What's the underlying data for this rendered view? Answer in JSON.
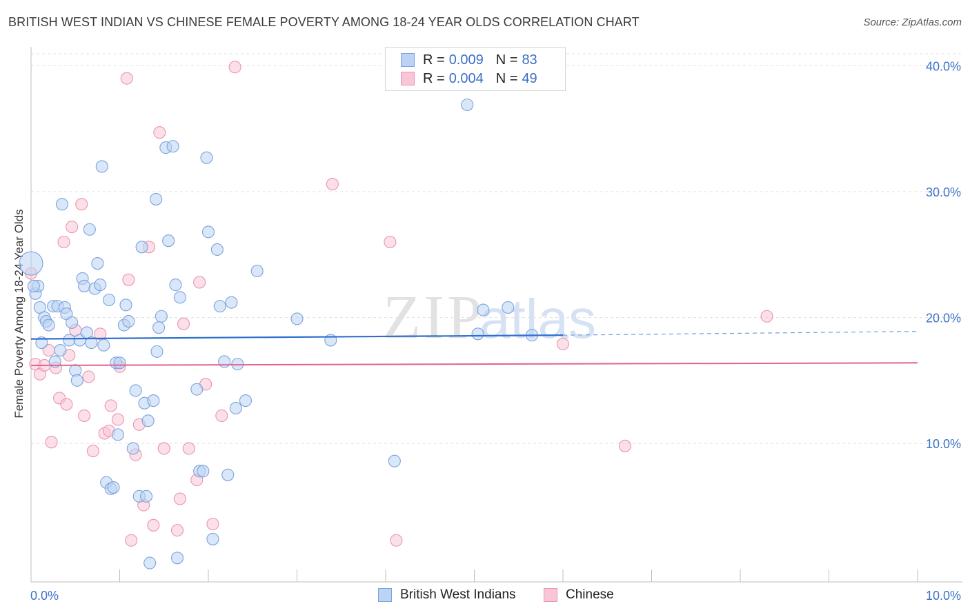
{
  "header": {
    "title": "BRITISH WEST INDIAN VS CHINESE FEMALE POVERTY AMONG 18-24 YEAR OLDS CORRELATION CHART",
    "source": "Source: ZipAtlas.com"
  },
  "watermark": {
    "zip": "ZIP",
    "atlas": "atlas"
  },
  "legend": {
    "rows": [
      {
        "r_label": "R =",
        "r_value": "0.009",
        "n_label": "N =",
        "n_value": "83",
        "color": "#bcd3f3"
      },
      {
        "r_label": "R =",
        "r_value": "0.004",
        "n_label": "N =",
        "n_value": "49",
        "color": "#f8c6d6"
      }
    ]
  },
  "chart_data": {
    "type": "scatter",
    "title": "BRITISH WEST INDIAN VS CHINESE FEMALE POVERTY AMONG 18-24 YEAR OLDS CORRELATION CHART",
    "xlabel": "",
    "ylabel": "Female Poverty Among 18-24 Year Olds",
    "xlim": [
      0,
      10
    ],
    "ylim": [
      -1.0,
      41.5
    ],
    "x_tick_labels": [
      {
        "value": 0,
        "label": "0.0%"
      },
      {
        "value": 10,
        "label": "10.0%"
      }
    ],
    "y_tick_labels": [
      {
        "value": 10,
        "label": "10.0%"
      },
      {
        "value": 20,
        "label": "20.0%"
      },
      {
        "value": 30,
        "label": "30.0%"
      },
      {
        "value": 40,
        "label": "40.0%"
      }
    ],
    "grid": true,
    "legend_position": "top-center",
    "series": [
      {
        "name": "British West Indians",
        "color": "#7aa3de",
        "fill": "#bcd3f3",
        "trend": {
          "x0": 0,
          "y0": 18.3,
          "x1": 6.0,
          "y1": 18.6,
          "dash_to": 10,
          "y_dash_end": 18.9
        },
        "points": [
          [
            0.0,
            24.3
          ],
          [
            0.05,
            21.9
          ],
          [
            0.08,
            22.5
          ],
          [
            0.1,
            20.8
          ],
          [
            0.12,
            18.0
          ],
          [
            0.15,
            20.0
          ],
          [
            0.17,
            19.7
          ],
          [
            0.2,
            19.4
          ],
          [
            0.25,
            20.9
          ],
          [
            0.27,
            16.5
          ],
          [
            0.3,
            20.9
          ],
          [
            0.33,
            17.4
          ],
          [
            0.35,
            29.0
          ],
          [
            0.38,
            20.8
          ],
          [
            0.4,
            20.3
          ],
          [
            0.43,
            18.2
          ],
          [
            0.46,
            19.6
          ],
          [
            0.5,
            15.8
          ],
          [
            0.52,
            15.0
          ],
          [
            0.55,
            18.2
          ],
          [
            0.58,
            23.1
          ],
          [
            0.6,
            22.5
          ],
          [
            0.63,
            18.8
          ],
          [
            0.66,
            27.0
          ],
          [
            0.68,
            18.0
          ],
          [
            0.72,
            22.3
          ],
          [
            0.75,
            24.3
          ],
          [
            0.78,
            22.6
          ],
          [
            0.8,
            32.0
          ],
          [
            0.82,
            17.8
          ],
          [
            0.85,
            6.9
          ],
          [
            0.88,
            21.4
          ],
          [
            0.9,
            6.4
          ],
          [
            0.93,
            6.5
          ],
          [
            0.96,
            16.4
          ],
          [
            0.98,
            10.7
          ],
          [
            1.0,
            16.4
          ],
          [
            1.05,
            19.4
          ],
          [
            1.07,
            21.0
          ],
          [
            1.1,
            19.7
          ],
          [
            1.15,
            9.6
          ],
          [
            1.18,
            14.2
          ],
          [
            1.22,
            5.8
          ],
          [
            1.25,
            25.6
          ],
          [
            1.28,
            13.2
          ],
          [
            1.3,
            5.8
          ],
          [
            1.32,
            11.8
          ],
          [
            1.34,
            0.5
          ],
          [
            1.38,
            13.4
          ],
          [
            1.41,
            29.4
          ],
          [
            1.42,
            17.3
          ],
          [
            1.44,
            19.2
          ],
          [
            1.47,
            20.1
          ],
          [
            1.52,
            33.5
          ],
          [
            1.55,
            26.1
          ],
          [
            1.6,
            33.6
          ],
          [
            1.63,
            22.6
          ],
          [
            1.65,
            0.9
          ],
          [
            1.68,
            21.6
          ],
          [
            1.87,
            14.3
          ],
          [
            1.9,
            7.8
          ],
          [
            1.94,
            7.8
          ],
          [
            1.98,
            32.7
          ],
          [
            2.0,
            26.8
          ],
          [
            2.05,
            2.4
          ],
          [
            2.1,
            25.4
          ],
          [
            2.13,
            20.9
          ],
          [
            2.18,
            16.5
          ],
          [
            2.22,
            7.5
          ],
          [
            2.26,
            21.2
          ],
          [
            2.31,
            12.8
          ],
          [
            2.33,
            16.3
          ],
          [
            2.42,
            13.4
          ],
          [
            2.55,
            23.7
          ],
          [
            3.0,
            19.9
          ],
          [
            3.38,
            18.2
          ],
          [
            4.1,
            8.6
          ],
          [
            4.92,
            36.9
          ],
          [
            5.04,
            18.7
          ],
          [
            5.1,
            20.6
          ],
          [
            5.38,
            20.8
          ],
          [
            5.65,
            18.6
          ],
          [
            0.03,
            22.5
          ]
        ]
      },
      {
        "name": "Chinese",
        "color": "#ec93b0",
        "fill": "#f8c6d6",
        "trend": {
          "x0": 0,
          "y0": 16.2,
          "x1": 10,
          "y1": 16.4
        },
        "points": [
          [
            0.0,
            23.5
          ],
          [
            0.05,
            16.3
          ],
          [
            0.1,
            15.5
          ],
          [
            0.15,
            16.2
          ],
          [
            0.2,
            17.4
          ],
          [
            0.23,
            10.1
          ],
          [
            0.28,
            16.0
          ],
          [
            0.32,
            13.6
          ],
          [
            0.37,
            26.0
          ],
          [
            0.4,
            13.1
          ],
          [
            0.43,
            17.0
          ],
          [
            0.46,
            27.2
          ],
          [
            0.5,
            19.0
          ],
          [
            0.57,
            29.0
          ],
          [
            0.6,
            12.2
          ],
          [
            0.65,
            15.3
          ],
          [
            0.7,
            9.4
          ],
          [
            0.78,
            18.7
          ],
          [
            0.83,
            10.8
          ],
          [
            0.88,
            11.0
          ],
          [
            0.9,
            13.0
          ],
          [
            0.98,
            11.9
          ],
          [
            1.0,
            16.1
          ],
          [
            1.08,
            39.0
          ],
          [
            1.1,
            23.0
          ],
          [
            1.13,
            2.3
          ],
          [
            1.18,
            9.1
          ],
          [
            1.22,
            11.5
          ],
          [
            1.27,
            5.1
          ],
          [
            1.33,
            25.6
          ],
          [
            1.38,
            3.5
          ],
          [
            1.45,
            34.7
          ],
          [
            1.5,
            9.6
          ],
          [
            1.65,
            3.1
          ],
          [
            1.68,
            5.6
          ],
          [
            1.72,
            19.5
          ],
          [
            1.78,
            9.6
          ],
          [
            1.87,
            7.1
          ],
          [
            1.9,
            22.8
          ],
          [
            1.97,
            14.7
          ],
          [
            2.05,
            3.6
          ],
          [
            2.15,
            12.2
          ],
          [
            2.3,
            39.9
          ],
          [
            3.4,
            30.6
          ],
          [
            4.05,
            26.0
          ],
          [
            4.12,
            2.3
          ],
          [
            6.0,
            17.9
          ],
          [
            6.7,
            9.8
          ],
          [
            8.3,
            20.1
          ]
        ]
      }
    ]
  },
  "bottom_legend": {
    "items": [
      {
        "label": "British West Indians"
      },
      {
        "label": "Chinese"
      }
    ]
  }
}
